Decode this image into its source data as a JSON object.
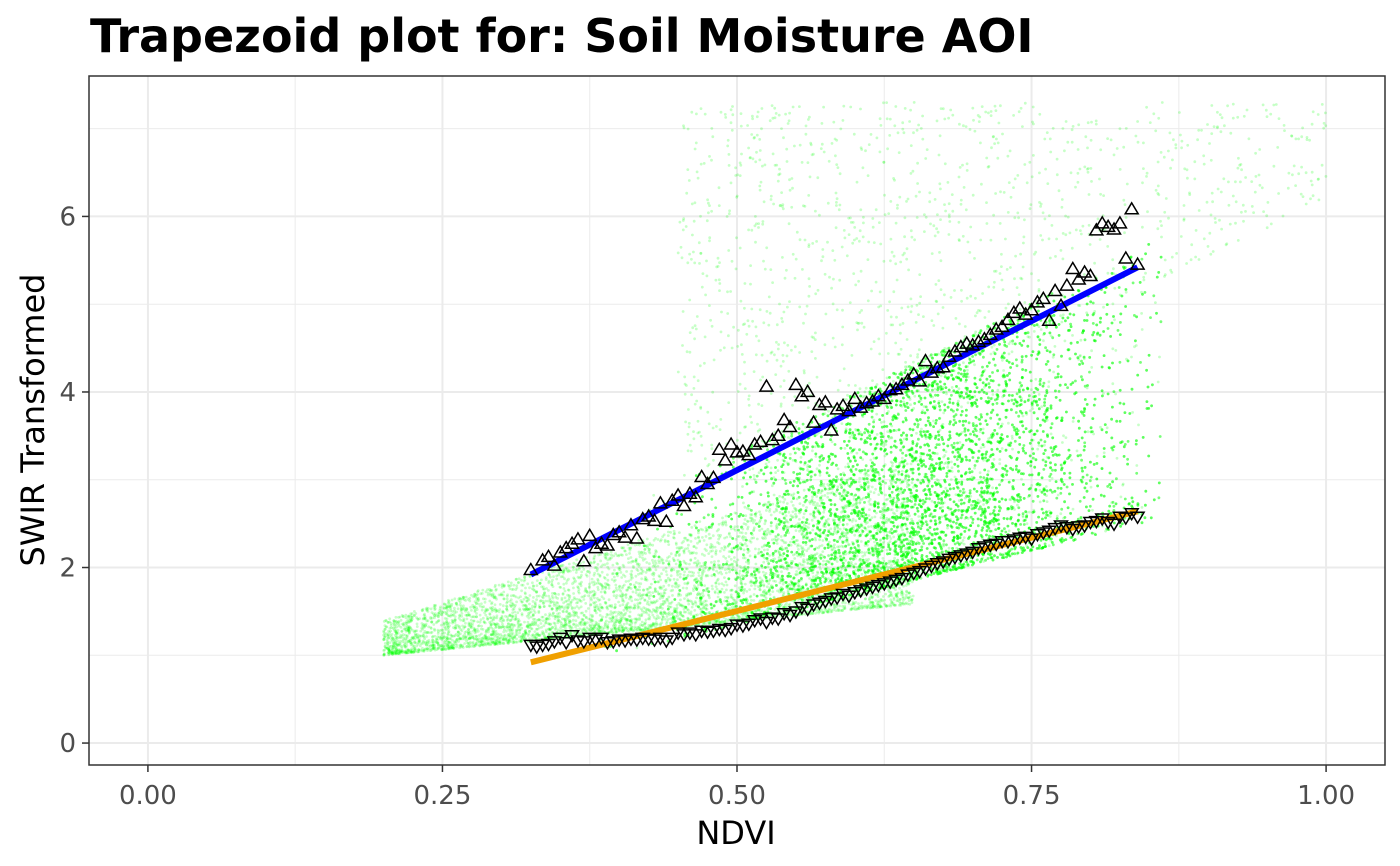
{
  "chart_data": {
    "type": "scatter",
    "title": "Trapezoid plot for: Soil Moisture AOI",
    "xlabel": "NDVI",
    "ylabel": "SWIR Transformed",
    "xlim": [
      -0.05,
      1.05
    ],
    "ylim": [
      -0.25,
      7.6
    ],
    "x_ticks": [
      0.0,
      0.25,
      0.5,
      0.75,
      1.0
    ],
    "x_tick_labels": [
      "0.00",
      "0.25",
      "0.50",
      "0.75",
      "1.00"
    ],
    "y_ticks": [
      0,
      2,
      4,
      6
    ],
    "y_tick_labels": [
      "0",
      "2",
      "4",
      "6"
    ],
    "grid": true,
    "legend": "none",
    "colors": {
      "scatter": "#00ff00",
      "wet_line": "#0000ff",
      "dry_line": "#f0a000",
      "markers": "#000000",
      "panel_border": "#333333",
      "grid": "#ebebeb"
    },
    "series": [
      {
        "type": "line",
        "color": "#0000ff",
        "x": [
          0.325,
          0.84
        ],
        "y": [
          1.92,
          5.42
        ]
      },
      {
        "type": "line",
        "color": "#f0a000",
        "x": [
          0.325,
          0.84
        ],
        "y": [
          0.92,
          2.64
        ]
      },
      {
        "type": "scatter",
        "marker": "triangle-up",
        "x": [
          0.325,
          0.335,
          0.34,
          0.345,
          0.35,
          0.355,
          0.36,
          0.365,
          0.37,
          0.375,
          0.38,
          0.385,
          0.39,
          0.395,
          0.4,
          0.405,
          0.41,
          0.415,
          0.42,
          0.425,
          0.43,
          0.435,
          0.44,
          0.445,
          0.45,
          0.455,
          0.46,
          0.465,
          0.47,
          0.475,
          0.48,
          0.485,
          0.49,
          0.495,
          0.5,
          0.505,
          0.51,
          0.515,
          0.52,
          0.525,
          0.53,
          0.535,
          0.54,
          0.545,
          0.55,
          0.555,
          0.56,
          0.565,
          0.57,
          0.575,
          0.58,
          0.585,
          0.59,
          0.595,
          0.6,
          0.605,
          0.61,
          0.615,
          0.62,
          0.625,
          0.63,
          0.635,
          0.64,
          0.645,
          0.65,
          0.655,
          0.66,
          0.665,
          0.67,
          0.675,
          0.68,
          0.685,
          0.69,
          0.695,
          0.7,
          0.705,
          0.71,
          0.715,
          0.72,
          0.725,
          0.73,
          0.735,
          0.74,
          0.745,
          0.75,
          0.755,
          0.76,
          0.765,
          0.77,
          0.775,
          0.78,
          0.785,
          0.79,
          0.795,
          0.8,
          0.805,
          0.81,
          0.815,
          0.82,
          0.825,
          0.83,
          0.835,
          0.84
        ],
        "y": [
          1.97,
          2.08,
          2.12,
          2.02,
          2.17,
          2.22,
          2.27,
          2.32,
          2.07,
          2.36,
          2.22,
          2.27,
          2.25,
          2.37,
          2.4,
          2.34,
          2.48,
          2.33,
          2.55,
          2.58,
          2.53,
          2.73,
          2.52,
          2.76,
          2.82,
          2.7,
          2.84,
          2.8,
          3.03,
          2.95,
          3.02,
          3.34,
          3.22,
          3.4,
          3.31,
          3.32,
          3.28,
          3.4,
          3.43,
          4.06,
          3.45,
          3.5,
          3.68,
          3.6,
          4.08,
          3.95,
          4.0,
          3.65,
          3.85,
          3.88,
          3.56,
          3.8,
          3.84,
          3.78,
          3.92,
          3.82,
          3.87,
          3.89,
          3.95,
          3.92,
          4.02,
          4.03,
          4.08,
          4.13,
          4.2,
          4.12,
          4.35,
          4.22,
          4.27,
          4.28,
          4.4,
          4.46,
          4.51,
          4.55,
          4.53,
          4.57,
          4.6,
          4.65,
          4.71,
          4.74,
          4.82,
          4.9,
          4.95,
          4.88,
          4.93,
          5.02,
          5.06,
          4.81,
          5.15,
          4.98,
          5.21,
          5.4,
          5.28,
          5.36,
          5.32,
          5.84,
          5.92,
          5.88,
          5.85,
          5.92,
          5.52,
          6.08,
          5.45
        ]
      },
      {
        "type": "scatter",
        "marker": "triangle-down",
        "x": [
          0.325,
          0.33,
          0.335,
          0.34,
          0.345,
          0.35,
          0.355,
          0.36,
          0.365,
          0.37,
          0.375,
          0.38,
          0.385,
          0.39,
          0.395,
          0.4,
          0.405,
          0.41,
          0.415,
          0.42,
          0.425,
          0.43,
          0.435,
          0.44,
          0.445,
          0.45,
          0.455,
          0.46,
          0.465,
          0.47,
          0.475,
          0.48,
          0.485,
          0.49,
          0.495,
          0.5,
          0.505,
          0.51,
          0.515,
          0.52,
          0.525,
          0.53,
          0.535,
          0.54,
          0.545,
          0.55,
          0.555,
          0.56,
          0.565,
          0.57,
          0.575,
          0.58,
          0.585,
          0.59,
          0.595,
          0.6,
          0.605,
          0.61,
          0.615,
          0.62,
          0.625,
          0.63,
          0.635,
          0.64,
          0.645,
          0.65,
          0.655,
          0.66,
          0.665,
          0.67,
          0.675,
          0.68,
          0.685,
          0.69,
          0.695,
          0.7,
          0.705,
          0.71,
          0.715,
          0.72,
          0.725,
          0.73,
          0.735,
          0.74,
          0.745,
          0.75,
          0.755,
          0.76,
          0.765,
          0.77,
          0.775,
          0.78,
          0.785,
          0.79,
          0.795,
          0.8,
          0.805,
          0.81,
          0.815,
          0.82,
          0.825,
          0.83,
          0.835,
          0.84
        ],
        "y": [
          1.12,
          1.1,
          1.12,
          1.13,
          1.16,
          1.2,
          1.15,
          1.23,
          1.17,
          1.16,
          1.2,
          1.18,
          1.2,
          1.15,
          1.16,
          1.18,
          1.17,
          1.19,
          1.18,
          1.2,
          1.19,
          1.18,
          1.2,
          1.17,
          1.2,
          1.26,
          1.24,
          1.26,
          1.24,
          1.28,
          1.27,
          1.28,
          1.3,
          1.29,
          1.31,
          1.35,
          1.34,
          1.36,
          1.4,
          1.42,
          1.38,
          1.43,
          1.42,
          1.48,
          1.46,
          1.5,
          1.55,
          1.53,
          1.58,
          1.6,
          1.62,
          1.65,
          1.66,
          1.7,
          1.68,
          1.72,
          1.74,
          1.76,
          1.78,
          1.8,
          1.82,
          1.84,
          1.86,
          1.88,
          1.92,
          1.94,
          1.96,
          1.99,
          2.02,
          2.05,
          2.07,
          2.1,
          2.12,
          2.14,
          2.16,
          2.18,
          2.22,
          2.24,
          2.26,
          2.27,
          2.3,
          2.3,
          2.32,
          2.34,
          2.35,
          2.33,
          2.38,
          2.4,
          2.42,
          2.45,
          2.48,
          2.46,
          2.44,
          2.47,
          2.48,
          2.52,
          2.53,
          2.56,
          2.52,
          2.5,
          2.58,
          2.57,
          2.62,
          2.58
        ]
      }
    ]
  }
}
